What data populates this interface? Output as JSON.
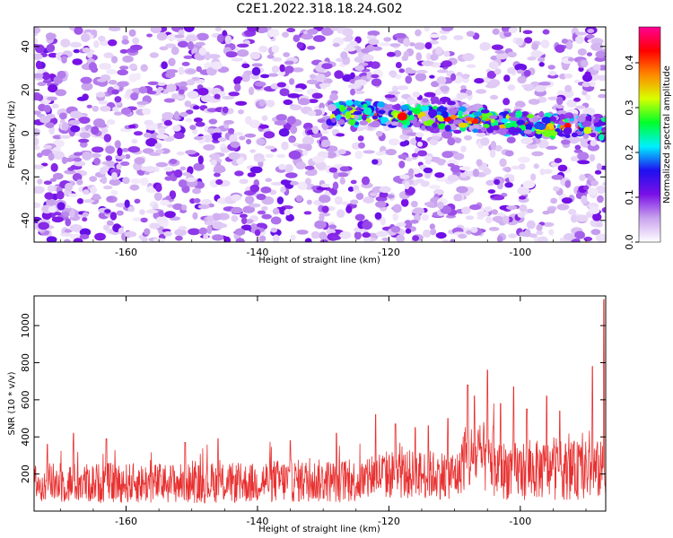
{
  "figure": {
    "title": "C2E1.2022.318.18.24.G02"
  },
  "chart_data": [
    {
      "type": "heatmap",
      "xlabel": "Height of straight line (km)",
      "ylabel": "Frequency (Hz)",
      "xlim": [
        -174,
        -87
      ],
      "ylim": [
        -50,
        49
      ],
      "x_ticks": [
        -160,
        -140,
        -120,
        -100
      ],
      "y_ticks": [
        -40,
        -20,
        0,
        20,
        40
      ],
      "colorbar": {
        "label": "Normalized spectral amplitude",
        "range": [
          0,
          0.48
        ],
        "ticks": [
          0.0,
          0.1,
          0.2,
          0.3,
          0.4
        ],
        "colormap": [
          "#ffffff",
          "#c9a3ee",
          "#7a10e6",
          "#1e10f0",
          "#00f0ff",
          "#00ff2a",
          "#d8ff00",
          "#ff8800",
          "#ff0000",
          "#ff0096"
        ]
      },
      "features": [
        {
          "description": "noise background",
          "x_range": [
            -174,
            -87
          ],
          "y_range": [
            -50,
            49
          ],
          "typical_amplitude": [
            0.0,
            0.12
          ]
        },
        {
          "description": "narrow band signal",
          "x_range": [
            -129,
            -87
          ],
          "y_center_at_start": 10,
          "y_center_at_end": 2,
          "half_width_hz": 5,
          "peak_amplitude": 0.45
        }
      ]
    },
    {
      "type": "line",
      "xlabel": "Height of straight line (km)",
      "ylabel": "SNR (10 * v/v)",
      "xlim": [
        -174,
        -87
      ],
      "ylim": [
        0,
        1160
      ],
      "x_ticks": [
        -160,
        -140,
        -120,
        -100
      ],
      "y_ticks": [
        200,
        400,
        600,
        800,
        1000
      ],
      "series": [
        {
          "color": "#e83030",
          "segments": [
            {
              "x_range": [
                -174,
                -140
              ],
              "baseline": 140,
              "noise_max": 260,
              "peaks": [
                [
                  -172,
                  360
                ],
                [
                  -168,
                  420
                ],
                [
                  -163,
                  390
                ],
                [
                  -151,
                  370
                ],
                [
                  -146,
                  390
                ]
              ]
            },
            {
              "x_range": [
                -140,
                -123
              ],
              "baseline": 150,
              "noise_max": 280,
              "peaks": [
                [
                  -135,
                  380
                ],
                [
                  -128,
                  420
                ]
              ]
            },
            {
              "x_range": [
                -123,
                -109
              ],
              "baseline": 210,
              "noise_max": 330,
              "peaks": [
                [
                  -122,
                  520
                ],
                [
                  -119,
                  470
                ],
                [
                  -116,
                  450
                ],
                [
                  -114,
                  460
                ],
                [
                  -111,
                  500
                ]
              ]
            },
            {
              "x_range": [
                -109,
                -104
              ],
              "baseline": 300,
              "noise_max": 480,
              "peaks": [
                [
                  -108,
                  680
                ],
                [
                  -107,
                  620
                ],
                [
                  -105,
                  760
                ],
                [
                  -104,
                  580
                ]
              ]
            },
            {
              "x_range": [
                -104,
                -87
              ],
              "baseline": 200,
              "noise_max": 380,
              "peaks": [
                [
                  -103,
                  580
                ],
                [
                  -101,
                  670
                ],
                [
                  -99,
                  550
                ],
                [
                  -96,
                  620
                ],
                [
                  -94,
                  540
                ],
                [
                  -89,
                  780
                ],
                [
                  -87.3,
                  1140
                ]
              ]
            }
          ]
        }
      ]
    }
  ]
}
